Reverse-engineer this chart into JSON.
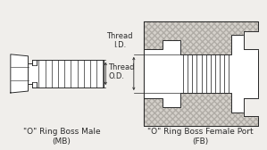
{
  "bg_color": "#f0eeeb",
  "line_color": "#2a2a2a",
  "hatch_color": "#999999",
  "title_left": "\"O\" Ring Boss Male\n(MB)",
  "title_right": "\"O\" Ring Boss Female Port\n(FB)",
  "label_od": "Thread\nO.D.",
  "label_id": "Thread\nI.D.",
  "font_size_title": 6.5,
  "font_size_label": 6.0
}
